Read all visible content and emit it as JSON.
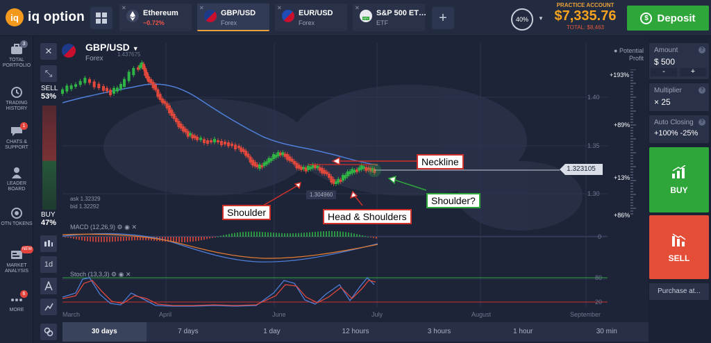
{
  "app": {
    "logo_mark": "iq",
    "logo_text": "iq option"
  },
  "tabs": [
    {
      "name": "Ethereum",
      "sub": "−0.72%",
      "sub_type": "negative",
      "icon": "ethereum-icon"
    },
    {
      "name": "GBP/USD",
      "sub": "Forex",
      "active": true,
      "icon": "gb-us-flag-icon"
    },
    {
      "name": "EUR/USD",
      "sub": "Forex",
      "icon": "eu-us-flag-icon"
    },
    {
      "name": "S&P 500 ET…",
      "sub": "ETF",
      "icon": "spy-icon"
    }
  ],
  "account": {
    "label": "PRACTICE ACCOUNT",
    "balance": "$7,335.76",
    "total": "TOTAL: $8,463",
    "percent": "40%"
  },
  "deposit": {
    "label": "Deposit",
    "icon_glyph": "$"
  },
  "left_nav": [
    {
      "label": "TOTAL PORTFOLIO",
      "badge": "3",
      "icon": "portfolio-icon"
    },
    {
      "label": "TRADING HISTORY",
      "icon": "history-icon"
    },
    {
      "label": "CHATS & SUPPORT",
      "badge": "1",
      "icon": "chat-icon"
    },
    {
      "label": "LEADER BOARD",
      "icon": "leaderboard-icon"
    },
    {
      "label": "OTN TOKENS",
      "icon": "otn-token-icon"
    },
    {
      "label": "MARKET ANALYSIS",
      "badge": "NEW",
      "icon": "market-analysis-icon"
    },
    {
      "label": "MORE",
      "badge": "6",
      "icon": "more-icon"
    }
  ],
  "asset": {
    "pair": "GBP/USD",
    "type": "Forex"
  },
  "sell_side": {
    "label": "SELL",
    "percent": "53%"
  },
  "buy_side": {
    "label": "BUY",
    "percent": "47%"
  },
  "tool_buttons": {
    "interval": "1d",
    "close_glyph": "✕",
    "expand_glyph": "⤡"
  },
  "potential_profit": {
    "label": "Potential Profit",
    "levels": [
      "+193%",
      "+89%",
      "+13%",
      "+86%"
    ]
  },
  "price_axis": [
    "1.40",
    "1.35",
    "1.30"
  ],
  "ask": "ask 1.32329",
  "bid": "bid 1.32292",
  "current_price": "1.323105",
  "low_price": "1.304960",
  "high_price": "1.437675",
  "indicators": {
    "macd": "MACD (12,26,9)",
    "stoch": "Stoch (13,3,3)",
    "macd_zero": "0",
    "stoch_levels": [
      "80",
      "20"
    ]
  },
  "months": [
    "March",
    "April",
    "June",
    "July",
    "August",
    "September"
  ],
  "annotations": {
    "neckline": "Neckline",
    "shoulder": "Shoulder",
    "head": "Head & Shoulders",
    "shoulder_q": "Shoulder?"
  },
  "timeframes": [
    "30 days",
    "7 days",
    "1 day",
    "12 hours",
    "3 hours",
    "1 hour",
    "30 min"
  ],
  "trade": {
    "amount_label": "Amount",
    "amount": "$  500",
    "multiplier_label": "Multiplier",
    "multiplier": "× 25",
    "auto_label": "Auto Closing",
    "auto": "+100%  -25%",
    "buy": "BUY",
    "sell": "SELL",
    "purchase": "Purchase at..."
  },
  "colors": {
    "up": "#2fb344",
    "down": "#e0483c",
    "ma": "#4f7fd8",
    "accent": "#f6a21e",
    "deposit": "#2ea63a"
  }
}
